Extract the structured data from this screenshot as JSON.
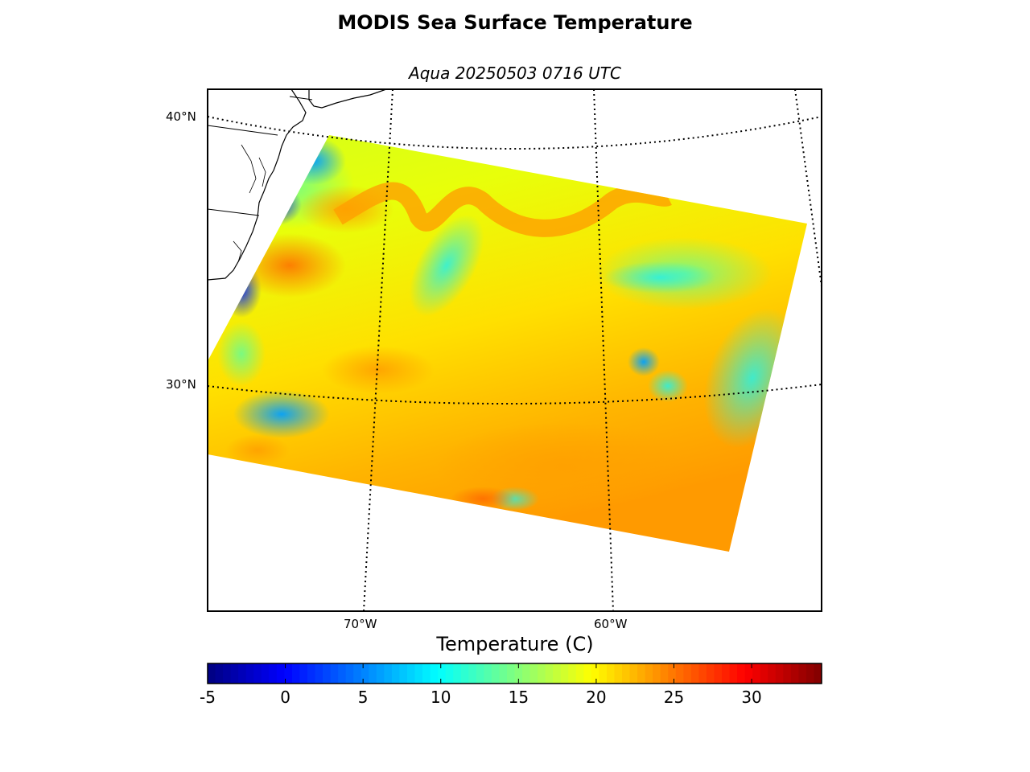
{
  "figure": {
    "title": "MODIS Sea Surface Temperature",
    "subtitle": "Aqua 20250503 0716 UTC"
  },
  "map": {
    "lat_labels": [
      "40°N",
      "30°N"
    ],
    "lon_labels": [
      "70°W",
      "60°W"
    ],
    "gridline_style": "dotted",
    "projection": "conic"
  },
  "colorbar": {
    "title": "Temperature (C)",
    "colormap": "jet",
    "range": [
      -5,
      34.5
    ],
    "ticks": [
      "-5",
      "0",
      "5",
      "10",
      "15",
      "20",
      "25",
      "30"
    ]
  },
  "colors": {
    "cold": "#000080",
    "cool": "#00c8ff",
    "mild": "#3cffc8",
    "warm": "#e8ff0a",
    "hot": "#ffa000",
    "very_hot": "#ff3c00"
  }
}
